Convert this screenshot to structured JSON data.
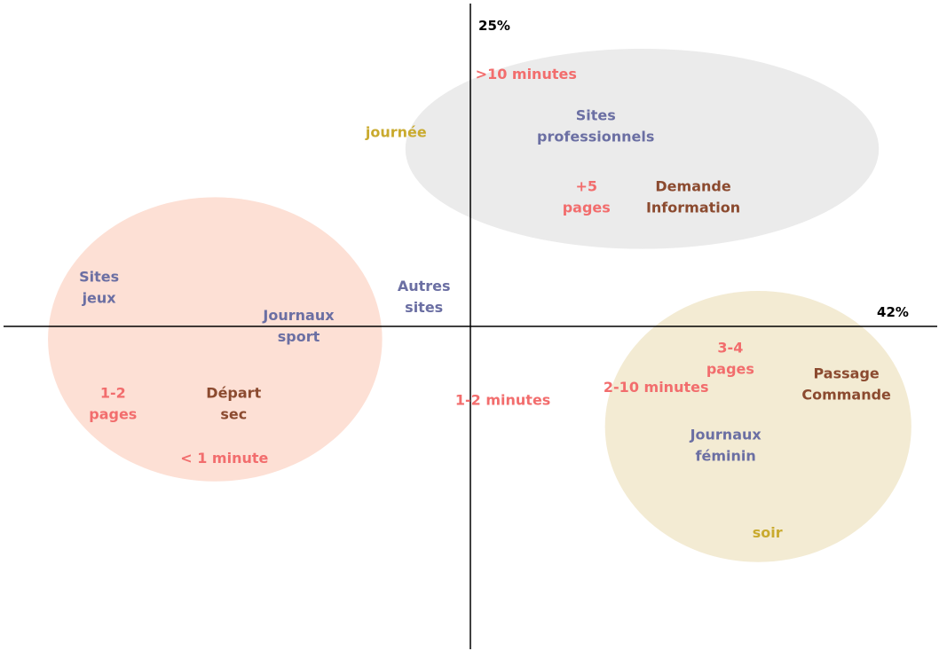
{
  "colors": {
    "site": "#6b6fa3",
    "duration": "#f26d6d",
    "time": "#c9aa2e",
    "behavior": "#8b4a2f",
    "cluster_grey": "#ebebeb",
    "cluster_salmon": "#fde0d5",
    "cluster_beige": "#f3ebd3",
    "axis": "#000000"
  },
  "chart_data": {
    "type": "scatter",
    "title": "",
    "xlabel": "42%",
    "ylabel": "25%",
    "xlim": [
      -100,
      100
    ],
    "ylim": [
      -100,
      100
    ],
    "grid": false,
    "legend": "none",
    "clusters": [
      {
        "name": "",
        "cx": 37,
        "cy": 55,
        "rx": 51,
        "ry": 31,
        "color": "cluster_grey"
      },
      {
        "name": "",
        "cx": -55,
        "cy": -4,
        "rx": 36,
        "ry": 44,
        "color": "cluster_salmon"
      },
      {
        "name": "",
        "cx": 62,
        "cy": -31,
        "rx": 33,
        "ry": 42,
        "color": "cluster_beige"
      }
    ],
    "points": [
      {
        "label": [
          ">10 minutes"
        ],
        "x": 12,
        "y": 78,
        "group": "duration"
      },
      {
        "label": [
          "Sites",
          "professionnels"
        ],
        "x": 27,
        "y": 62,
        "group": "site"
      },
      {
        "label": [
          "journée"
        ],
        "x": -16,
        "y": 60,
        "group": "time"
      },
      {
        "label": [
          "+5",
          "pages"
        ],
        "x": 25,
        "y": 40,
        "group": "duration"
      },
      {
        "label": [
          "Demande",
          "Information"
        ],
        "x": 48,
        "y": 40,
        "group": "behavior"
      },
      {
        "label": [
          "Sites",
          "jeux"
        ],
        "x": -80,
        "y": 12,
        "group": "site"
      },
      {
        "label": [
          "Autres",
          "sites"
        ],
        "x": -10,
        "y": 9,
        "group": "site"
      },
      {
        "label": [
          "Journaux",
          "sport"
        ],
        "x": -37,
        "y": 0,
        "group": "site"
      },
      {
        "label": [
          "1-2",
          "pages"
        ],
        "x": -77,
        "y": -24,
        "group": "duration"
      },
      {
        "label": [
          "Départ",
          "sec"
        ],
        "x": -51,
        "y": -24,
        "group": "behavior"
      },
      {
        "label": [
          "< 1 minute"
        ],
        "x": -53,
        "y": -41,
        "group": "duration"
      },
      {
        "label": [
          "1-2 minutes"
        ],
        "x": 7,
        "y": -23,
        "group": "duration"
      },
      {
        "label": [
          "3-4",
          "pages"
        ],
        "x": 56,
        "y": -10,
        "group": "duration"
      },
      {
        "label": [
          "2-10 minutes"
        ],
        "x": 40,
        "y": -19,
        "group": "duration"
      },
      {
        "label": [
          "Passage",
          "Commande"
        ],
        "x": 81,
        "y": -18,
        "group": "behavior"
      },
      {
        "label": [
          "Journaux",
          "féminin"
        ],
        "x": 55,
        "y": -37,
        "group": "site"
      },
      {
        "label": [
          "soir"
        ],
        "x": 64,
        "y": -64,
        "group": "time"
      }
    ]
  }
}
